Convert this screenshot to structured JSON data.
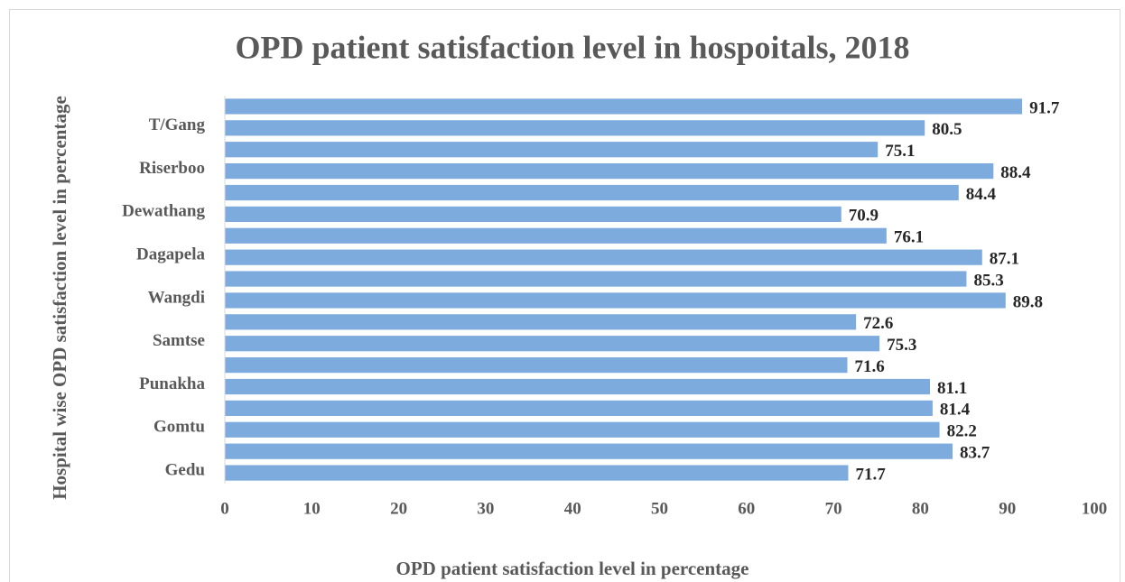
{
  "chart_data": {
    "type": "bar",
    "orientation": "horizontal",
    "title": "OPD patient satisfaction level in hospoitals, 2018",
    "x_axis_label": "OPD patient satisfaction level in percentage",
    "y_axis_label": "Hospital wise OPD satisfaction level in percentage",
    "categories": [
      "Gedu",
      null,
      "Gomtu",
      null,
      "Punakha",
      null,
      "Samtse",
      null,
      "Wangdi",
      null,
      "Dagapela",
      null,
      "Dewathang",
      null,
      "Riserboo",
      null,
      "T/Gang",
      null
    ],
    "values": [
      71.7,
      83.7,
      82.2,
      81.4,
      81.1,
      71.6,
      75.3,
      72.6,
      89.8,
      85.3,
      87.1,
      76.1,
      70.9,
      84.4,
      88.4,
      75.1,
      80.5,
      91.7
    ],
    "color": "#7eabdd",
    "xlim": [
      0,
      100
    ],
    "xticks": [
      0,
      10,
      20,
      30,
      40,
      50,
      60,
      70,
      80,
      90,
      100
    ],
    "grid": false
  }
}
